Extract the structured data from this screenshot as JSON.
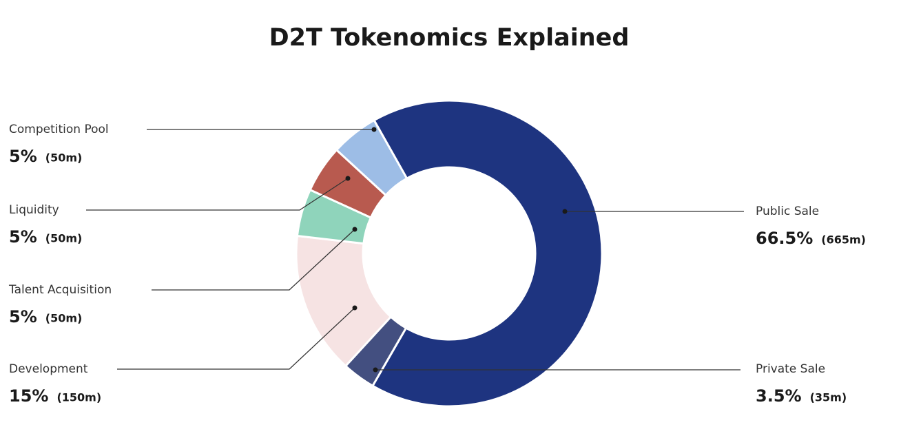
{
  "chart_data": {
    "type": "donut",
    "title": "D2T Tokenomics Explained",
    "categories": [
      "Public Sale",
      "Private Sale",
      "Development",
      "Talent Acquisition",
      "Liquidity",
      "Competition Pool"
    ],
    "values": [
      66.5,
      3.5,
      15,
      5,
      5,
      5
    ],
    "value_labels": [
      "66.5%",
      "3.5%",
      "15%",
      "5%",
      "5%",
      "5%"
    ],
    "amount_labels": [
      "(665m)",
      "(35m)",
      "(150m)",
      "(50m)",
      "(50m)",
      "(50m)"
    ],
    "colors": [
      "#1e3480",
      "#434f80",
      "#f6e3e3",
      "#8fd4bb",
      "#b85a4f",
      "#9dbde6"
    ]
  }
}
